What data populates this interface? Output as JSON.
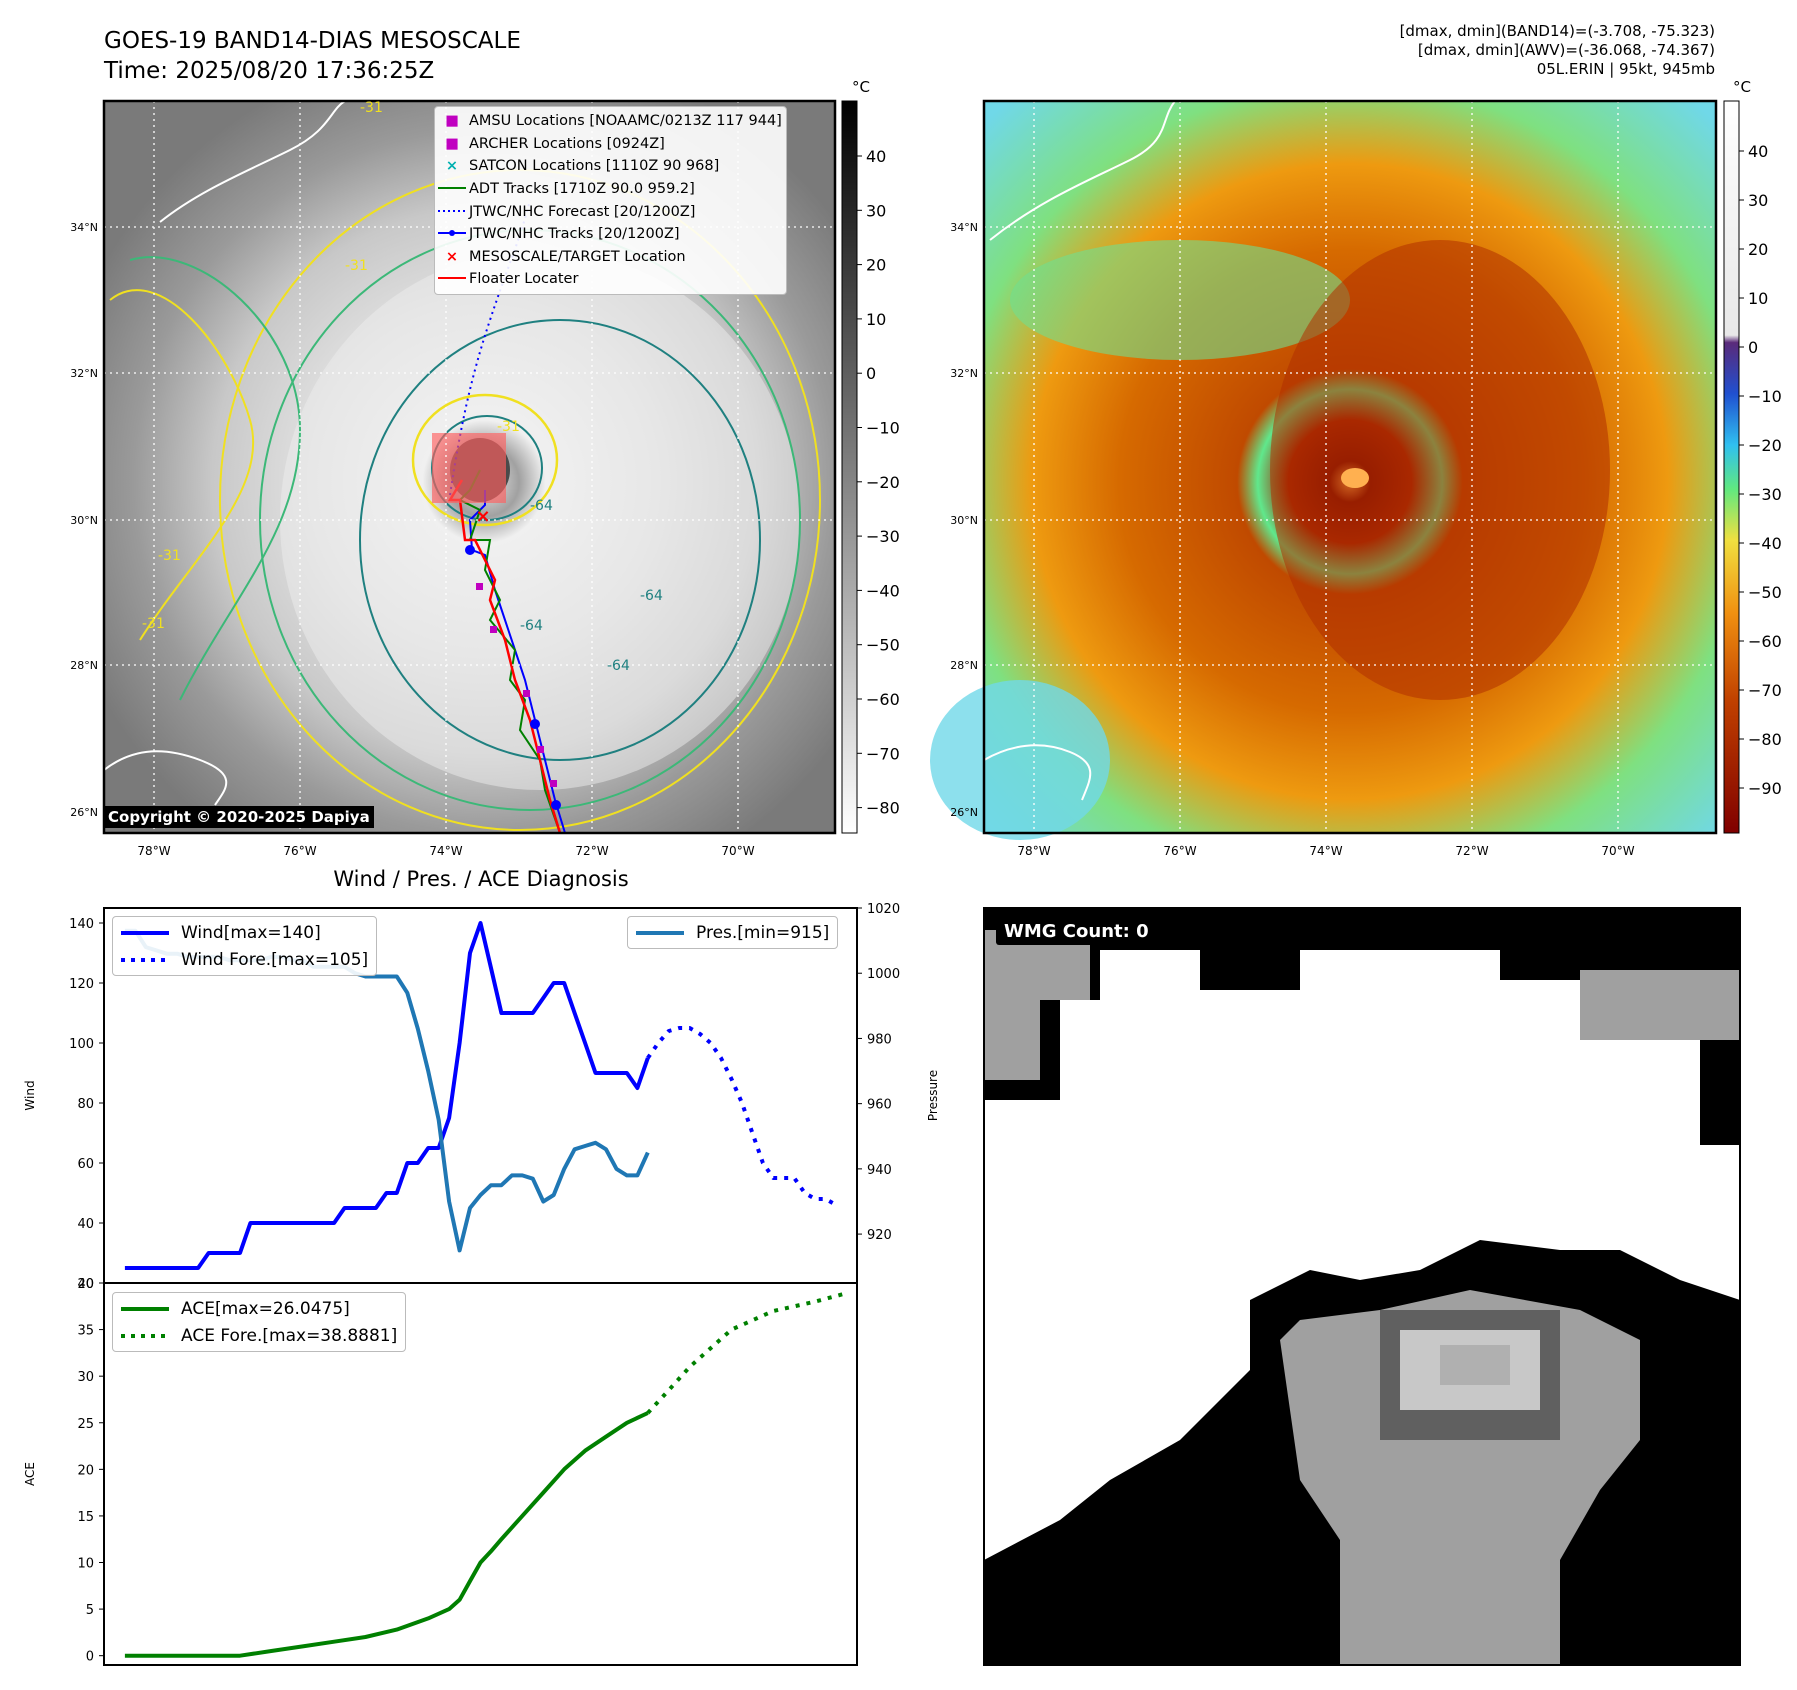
{
  "header": {
    "title_line1": "GOES-19 BAND14-DIAS MESOSCALE",
    "title_line2": "Time: 2025/08/20 17:36:25Z",
    "info_line1": "[dmax, dmin](BAND14)=(-3.708, -75.323)",
    "info_line2": "[dmax, dmin](AWV)=(-36.068, -74.367)",
    "info_line3": "05L.ERIN | 95kt, 945mb"
  },
  "map_axes": {
    "lat_labels": [
      "34°N",
      "32°N",
      "30°N",
      "28°N",
      "26°N"
    ],
    "lon_labels": [
      "78°W",
      "76°W",
      "74°W",
      "72°W",
      "70°W"
    ]
  },
  "ir_panel": {
    "colorbar_unit": "°C",
    "colorbar_ticks": [
      "40",
      "30",
      "20",
      "10",
      "0",
      "−10",
      "−20",
      "−30",
      "−40",
      "−50",
      "−60",
      "−70",
      "−80"
    ],
    "contour_labels": [
      "-31",
      "-31",
      "-31",
      "-31",
      "-64",
      "-64",
      "-64",
      "-64",
      "-31"
    ],
    "copyright": "Copyright © 2020-2025 Dapiya",
    "legend": [
      {
        "label": "AMSU Locations [NOAAMC/0213Z 117 944]",
        "symbol": "■",
        "color": "#c000c0"
      },
      {
        "label": "ARCHER Locations [0924Z]",
        "symbol": "■",
        "color": "#c000c0"
      },
      {
        "label": "SATCON Locations [1110Z 90 968]",
        "symbol": "×",
        "color": "#00b0b0"
      },
      {
        "label": "ADT Tracks [1710Z 90.0 959.2]",
        "symbol": "line",
        "color": "#008000"
      },
      {
        "label": "JTWC/NHC Forecast [20/1200Z]",
        "symbol": "dotted",
        "color": "#0000ff"
      },
      {
        "label": "JTWC/NHC Tracks [20/1200Z]",
        "symbol": "linedot",
        "color": "#0000ff"
      },
      {
        "label": "MESOSCALE/TARGET Location",
        "symbol": "×",
        "color": "#ff0000"
      },
      {
        "label": "Floater Locater",
        "symbol": "line",
        "color": "#ff0000"
      }
    ]
  },
  "awv_panel": {
    "colorbar_unit": "°C",
    "colorbar_ticks": [
      "40",
      "30",
      "20",
      "10",
      "0",
      "−10",
      "−20",
      "−30",
      "−40",
      "−50",
      "−60",
      "−70",
      "−80",
      "−90"
    ]
  },
  "wmg_panel": {
    "label": "WMG Count: 0"
  },
  "chart_data": [
    {
      "type": "line",
      "title": "Wind / Pres. / ACE Diagnosis",
      "ylabel": "Wind",
      "ylabel_right": "Pressure",
      "ylim": [
        20,
        145
      ],
      "ylim_right": [
        905,
        1020
      ],
      "xlim": [
        -2,
        70
      ],
      "yticks": [
        20,
        40,
        60,
        80,
        100,
        120,
        140
      ],
      "yticks_right": [
        920,
        940,
        960,
        980,
        1000,
        1020
      ],
      "legend_left": [
        "Wind[max=140]",
        "Wind Fore.[max=105]"
      ],
      "legend_right": [
        "Pres.[min=915]"
      ],
      "series": [
        {
          "name": "Wind[max=140]",
          "color": "#0000ff",
          "style": "solid",
          "axis": "left",
          "x": [
            0,
            2,
            4,
            5,
            6,
            7,
            8,
            9,
            10,
            11,
            12,
            13,
            14,
            15,
            16,
            17,
            18,
            19,
            20,
            21,
            22,
            23,
            24,
            25,
            26,
            27,
            28,
            29,
            30,
            31,
            32,
            33,
            34,
            35,
            36,
            37,
            38,
            39,
            40,
            41,
            42,
            43,
            44,
            45,
            46,
            47,
            48,
            49,
            50
          ],
          "values": [
            25,
            25,
            25,
            25,
            25,
            25,
            30,
            30,
            30,
            30,
            40,
            40,
            40,
            40,
            40,
            40,
            40,
            40,
            40,
            45,
            45,
            45,
            45,
            50,
            50,
            60,
            60,
            65,
            65,
            75,
            100,
            130,
            140,
            125,
            110,
            110,
            110,
            110,
            115,
            120,
            120,
            110,
            100,
            90,
            90,
            90,
            90,
            85,
            95
          ]
        },
        {
          "name": "Wind Fore.[max=105]",
          "color": "#0000ff",
          "style": "dotted",
          "axis": "left",
          "x": [
            50,
            51,
            52,
            53,
            54,
            55,
            56,
            57,
            58,
            59,
            60,
            61,
            62,
            63,
            64,
            65,
            66,
            67,
            68
          ],
          "values": [
            95,
            100,
            104,
            105,
            105,
            103,
            100,
            95,
            88,
            80,
            70,
            60,
            55,
            55,
            55,
            50,
            48,
            48,
            46
          ]
        },
        {
          "name": "Pres.[min=915]",
          "color": "#1f77b4",
          "style": "solid",
          "axis": "right",
          "x": [
            0,
            1,
            2,
            3,
            4,
            5,
            6,
            7,
            8,
            9,
            10,
            11,
            12,
            13,
            14,
            15,
            16,
            17,
            18,
            19,
            20,
            21,
            22,
            23,
            24,
            25,
            26,
            27,
            28,
            29,
            30,
            31,
            32,
            33,
            34,
            35,
            36,
            37,
            38,
            39,
            40,
            41,
            42,
            43,
            44,
            45,
            46,
            47,
            48,
            49,
            50
          ],
          "values": [
            1013,
            1013,
            1008,
            1007,
            1006,
            1006,
            1005,
            1005,
            1005,
            1005,
            1004,
            1004,
            1004,
            1004,
            1005,
            1005,
            1004,
            1004,
            1002,
            1002,
            1002,
            1002,
            1000,
            999,
            999,
            999,
            999,
            994,
            983,
            970,
            955,
            930,
            915,
            928,
            932,
            935,
            935,
            938,
            938,
            937,
            930,
            932,
            940,
            946,
            947,
            948,
            946,
            940,
            938,
            938,
            945
          ]
        }
      ]
    },
    {
      "type": "line",
      "ylabel": "ACE",
      "ylim": [
        -1,
        40
      ],
      "xlim": [
        -2,
        70
      ],
      "yticks": [
        0,
        5,
        10,
        15,
        20,
        25,
        30,
        35,
        40
      ],
      "legend": [
        "ACE[max=26.0475]",
        "ACE Fore.[max=38.8881]"
      ],
      "series": [
        {
          "name": "ACE[max=26.0475]",
          "color": "#008000",
          "style": "solid",
          "x": [
            0,
            4,
            8,
            11,
            14,
            17,
            20,
            23,
            26,
            29,
            31,
            32,
            33,
            34,
            35,
            36,
            38,
            40,
            42,
            44,
            46,
            48,
            50
          ],
          "values": [
            0,
            0,
            0,
            0,
            0.5,
            1,
            1.5,
            2,
            2.8,
            4,
            5,
            6,
            8,
            10,
            11.2,
            12.5,
            15,
            17.5,
            20,
            22,
            23.5,
            25,
            26.05
          ]
        },
        {
          "name": "ACE Fore.[max=38.8881]",
          "color": "#008000",
          "style": "dotted",
          "x": [
            50,
            52,
            54,
            56,
            58,
            60,
            62,
            64,
            66,
            68,
            69
          ],
          "values": [
            26.05,
            28.5,
            31,
            33,
            35,
            36,
            37,
            37.5,
            38,
            38.6,
            38.9
          ]
        }
      ]
    }
  ]
}
